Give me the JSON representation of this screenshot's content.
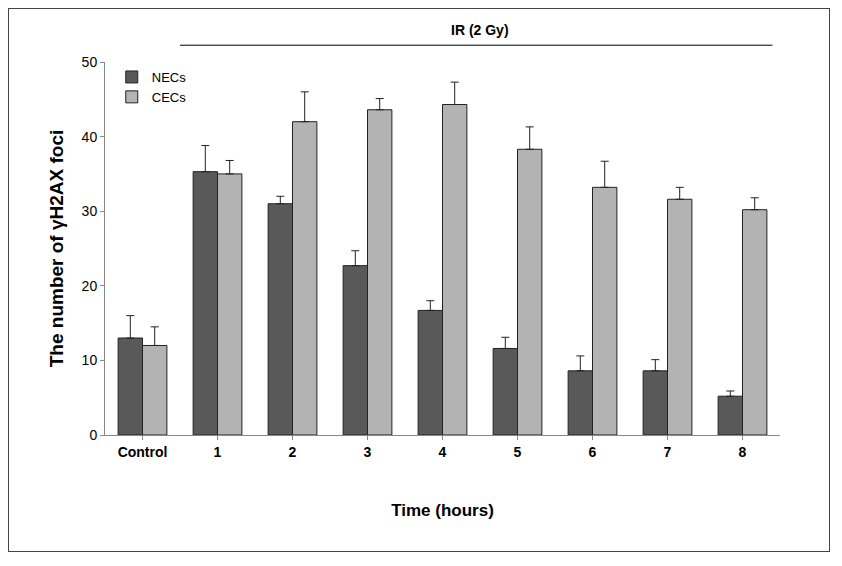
{
  "chart_data": {
    "type": "bar",
    "x_label": "Time (hours)",
    "y_label": "The number of γH2AX foci",
    "annotations": [
      {
        "text": "IR (2 Gy)"
      }
    ],
    "categories": [
      "Control",
      "1",
      "2",
      "3",
      "4",
      "5",
      "6",
      "7",
      "8"
    ],
    "series": [
      {
        "name": "NECs",
        "color": "#595959",
        "values": [
          13,
          35.3,
          31,
          22.7,
          16.7,
          11.6,
          8.6,
          8.6,
          5.2
        ],
        "errors": [
          3,
          3.5,
          1,
          2,
          1.3,
          1.5,
          2,
          1.5,
          0.7
        ]
      },
      {
        "name": "CECs",
        "color": "#b3b3b3",
        "values": [
          12,
          35,
          42,
          43.6,
          44.3,
          38.3,
          33.2,
          31.6,
          30.2
        ],
        "errors": [
          2.5,
          1.8,
          4,
          1.5,
          3,
          3,
          3.5,
          1.6,
          1.6
        ]
      }
    ],
    "ylim": [
      0,
      50
    ],
    "yticks": [
      0,
      10,
      20,
      30,
      40,
      50
    ],
    "grid": false,
    "legend": "top-left"
  }
}
